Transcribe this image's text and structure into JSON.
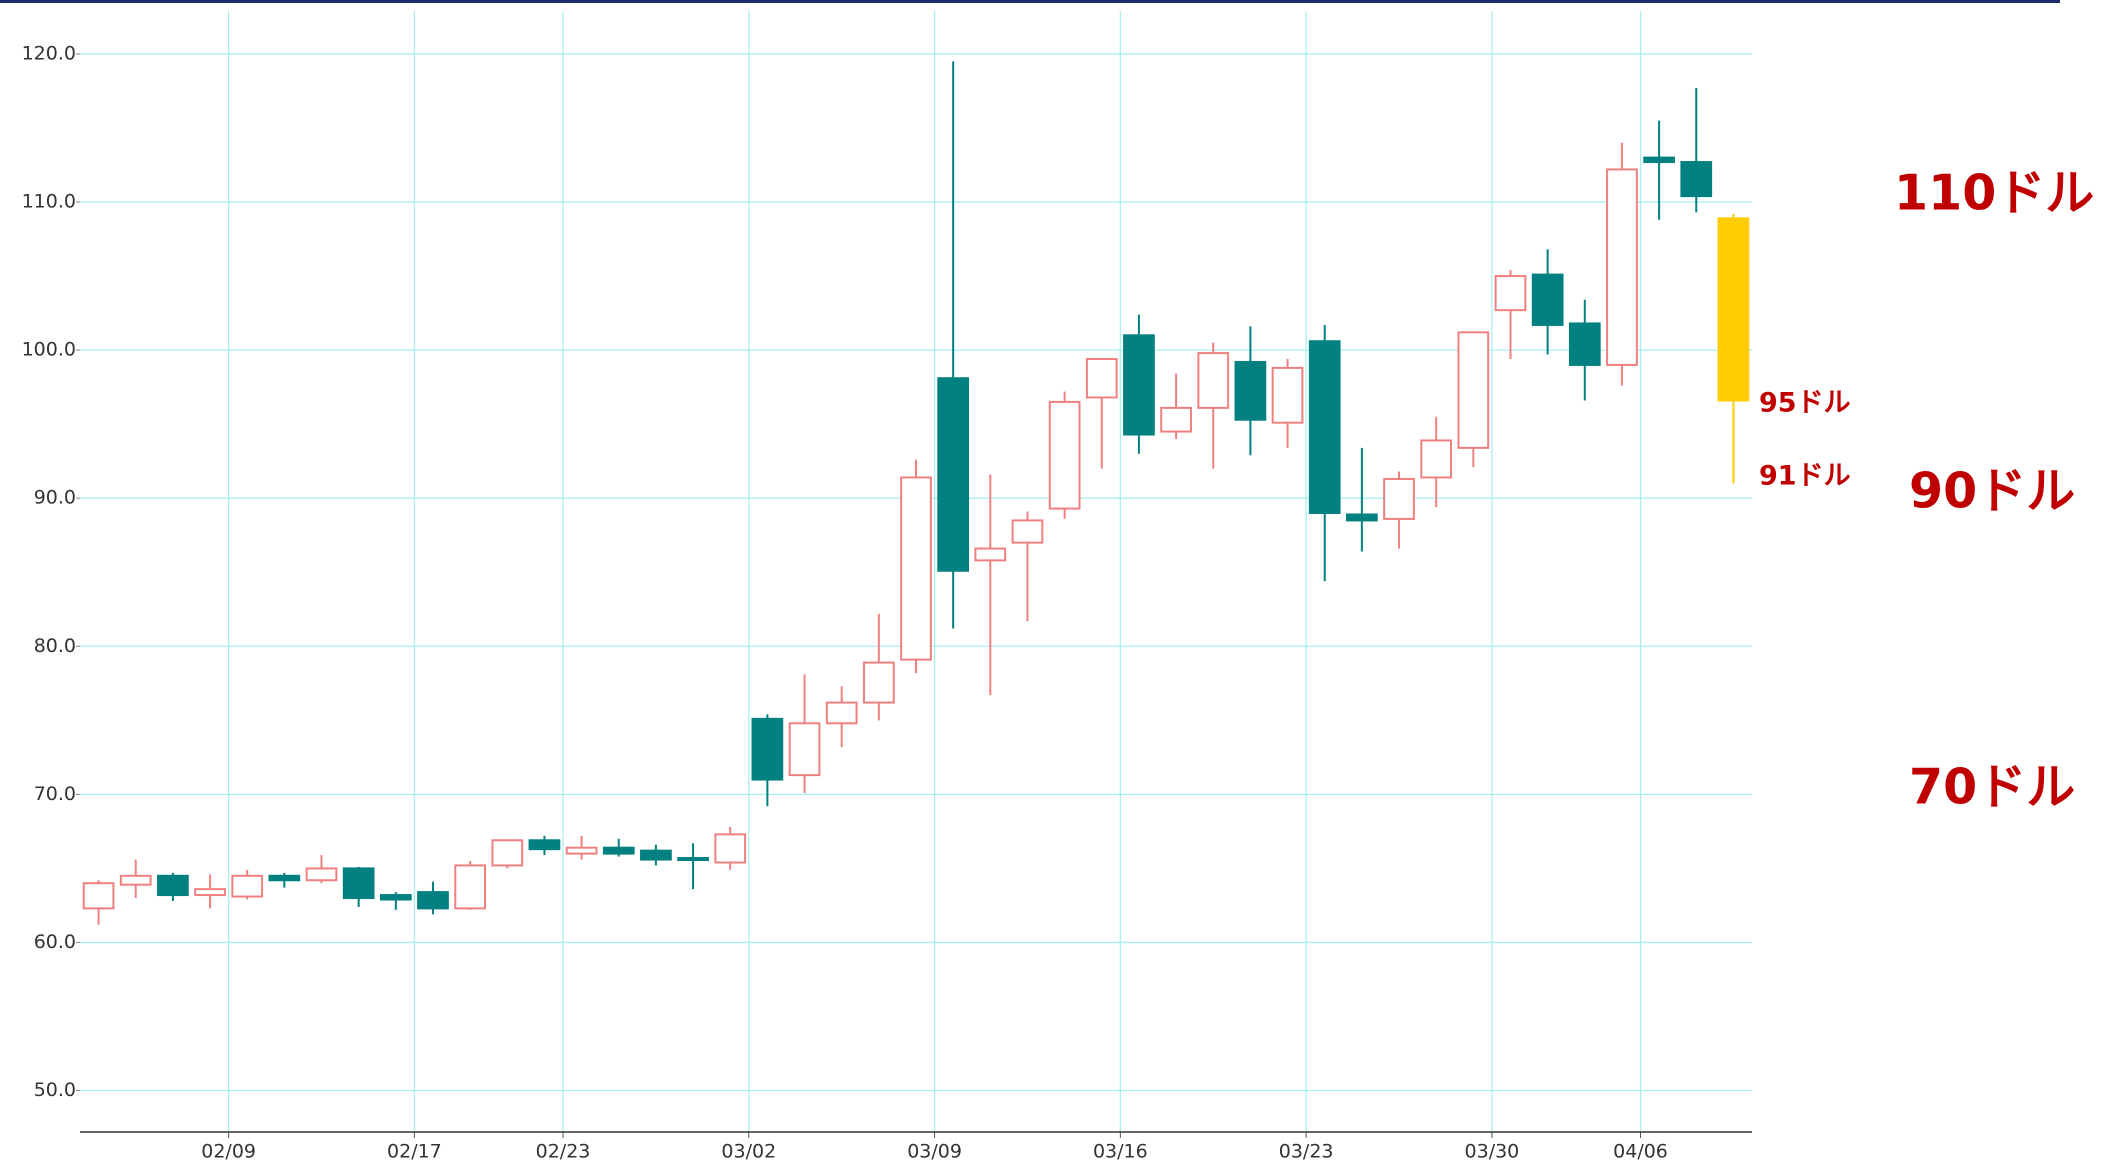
{
  "chart_data": {
    "type": "candlestick",
    "x": [
      0,
      1,
      2,
      3,
      4,
      5,
      6,
      7,
      8,
      9,
      10,
      11,
      12,
      13,
      14,
      15,
      16,
      17,
      18,
      19,
      20,
      21,
      22,
      23,
      24,
      25,
      26,
      27,
      28,
      29,
      30,
      31,
      32,
      33,
      34,
      35,
      36,
      37,
      38,
      39,
      40,
      41,
      42,
      43,
      44
    ],
    "open": [
      62.3,
      63.9,
      64.5,
      63.2,
      63.1,
      64.5,
      64.2,
      65.0,
      63.2,
      63.4,
      62.3,
      65.2,
      66.9,
      66.0,
      66.4,
      66.2,
      65.7,
      65.4,
      75.1,
      71.3,
      74.8,
      76.2,
      79.1,
      98.1,
      85.8,
      87.0,
      89.3,
      96.8,
      101.0,
      94.5,
      96.1,
      99.2,
      95.1,
      100.6,
      88.9,
      88.6,
      91.4,
      93.4,
      102.7,
      105.1,
      101.8,
      99.0,
      113.0,
      112.7,
      108.9
    ],
    "high": [
      64.2,
      65.6,
      64.7,
      64.6,
      64.9,
      64.7,
      65.9,
      65.1,
      63.4,
      64.1,
      65.5,
      66.9,
      67.2,
      67.2,
      67.0,
      66.6,
      66.7,
      67.8,
      75.4,
      78.1,
      77.3,
      82.2,
      92.6,
      119.5,
      91.6,
      89.1,
      97.2,
      99.4,
      102.4,
      98.4,
      100.5,
      101.6,
      99.4,
      101.7,
      93.4,
      91.8,
      95.5,
      101.2,
      105.4,
      106.8,
      103.4,
      114.0,
      115.5,
      117.7,
      109.2
    ],
    "low": [
      61.2,
      63.0,
      62.8,
      62.3,
      62.9,
      63.7,
      64.0,
      62.4,
      62.2,
      61.9,
      62.2,
      65.0,
      65.9,
      65.6,
      65.8,
      65.2,
      63.6,
      64.9,
      69.2,
      70.1,
      73.2,
      75.0,
      78.2,
      81.2,
      76.7,
      81.7,
      88.6,
      92.0,
      93.0,
      94.0,
      92.0,
      92.9,
      93.4,
      84.4,
      86.4,
      86.6,
      89.4,
      92.1,
      99.4,
      99.7,
      96.6,
      97.6,
      108.8,
      109.3,
      91.0
    ],
    "close": [
      64.0,
      64.5,
      63.2,
      63.6,
      64.5,
      64.2,
      65.0,
      63.0,
      62.9,
      62.3,
      65.2,
      66.9,
      66.3,
      66.4,
      66.0,
      65.6,
      65.6,
      67.3,
      71.0,
      74.8,
      76.2,
      78.9,
      91.4,
      85.1,
      86.6,
      88.5,
      96.5,
      99.4,
      94.3,
      96.1,
      99.8,
      95.3,
      98.8,
      89.0,
      88.5,
      91.3,
      93.9,
      101.2,
      105.0,
      101.7,
      99.0,
      112.2,
      112.7,
      110.4,
      96.6
    ],
    "up_color": "#f08080",
    "down_color": "#008080",
    "highlight": {
      "index": 44,
      "color": "#ffcc00"
    },
    "xlim": [
      -0.5,
      44.5
    ],
    "xticks": [
      {
        "value": 3.5,
        "label": "02/09"
      },
      {
        "value": 8.5,
        "label": "02/17"
      },
      {
        "value": 12.5,
        "label": "02/23"
      },
      {
        "value": 17.5,
        "label": "03/02"
      },
      {
        "value": 22.5,
        "label": "03/09"
      },
      {
        "value": 27.5,
        "label": "03/16"
      },
      {
        "value": 32.5,
        "label": "03/23"
      },
      {
        "value": 37.5,
        "label": "03/30"
      },
      {
        "value": 41.5,
        "label": "04/06"
      }
    ],
    "ylim": [
      47.2,
      122.9
    ],
    "yticks": [
      {
        "value": 50,
        "label": "50.0"
      },
      {
        "value": 60,
        "label": "60.0"
      },
      {
        "value": 70,
        "label": "70.0"
      },
      {
        "value": 80,
        "label": "80.0"
      },
      {
        "value": 90,
        "label": "90.0"
      },
      {
        "value": 100,
        "label": "100.0"
      },
      {
        "value": 110,
        "label": "110.0"
      },
      {
        "value": 120,
        "label": "120.0"
      }
    ],
    "grid": true,
    "annotations": [
      "110ドル",
      "90ドル",
      "70ドル",
      "95ドル",
      "91ドル"
    ]
  }
}
